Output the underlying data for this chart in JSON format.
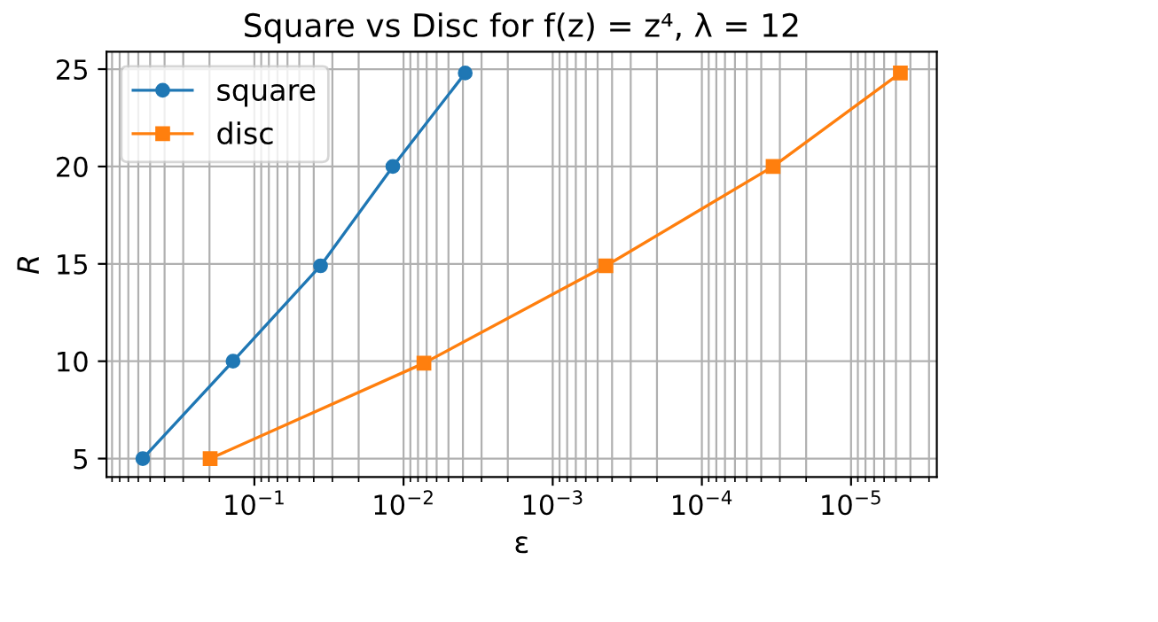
{
  "chart_data": {
    "type": "line",
    "title": "Square vs Disc for f(z) = z⁴, λ = 12",
    "xlabel": "ε",
    "ylabel": "R",
    "log": "x",
    "xlim": [
      0.98,
      2.66e-06
    ],
    "ylim": [
      4.05,
      25.9
    ],
    "xticks": [
      {
        "value": 0.1,
        "label": "10$^{−1}$"
      },
      {
        "value": 0.01,
        "label": "10$^{−2}$"
      },
      {
        "value": 0.001,
        "label": "10$^{−3}$"
      },
      {
        "value": 0.0001,
        "label": "10$^{−4}$"
      },
      {
        "value": 1e-05,
        "label": "10$^{−5}$"
      }
    ],
    "yticks": [
      5,
      10,
      15,
      20,
      25
    ],
    "grid": true,
    "legend": "top left",
    "series": [
      {
        "name": "square",
        "color": "#1f77b4",
        "marker": "circle",
        "x": [
          0.56,
          0.139,
          0.036,
          0.0118,
          0.00386
        ],
        "values": [
          5,
          10,
          14.9,
          20,
          24.8
        ]
      },
      {
        "name": "disc",
        "color": "#ff7f0e",
        "marker": "square",
        "x": [
          0.198,
          0.0073,
          0.00044,
          3.33e-05,
          4.67e-06
        ],
        "values": [
          5,
          9.9,
          14.9,
          20,
          24.8
        ]
      }
    ]
  }
}
